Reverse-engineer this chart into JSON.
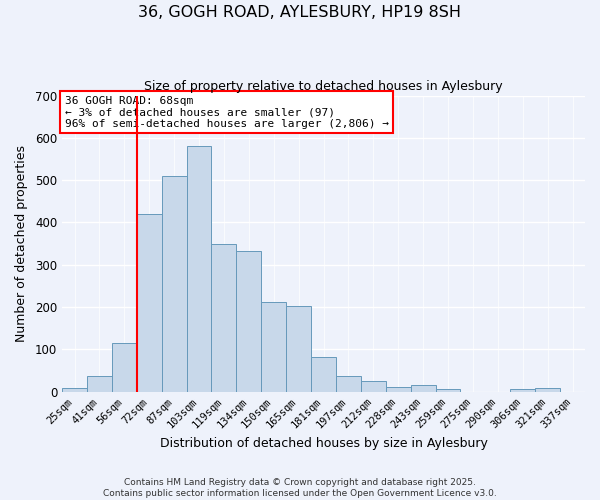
{
  "title": "36, GOGH ROAD, AYLESBURY, HP19 8SH",
  "subtitle": "Size of property relative to detached houses in Aylesbury",
  "xlabel": "Distribution of detached houses by size in Aylesbury",
  "ylabel": "Number of detached properties",
  "bar_color": "#c8d8ea",
  "bar_edge_color": "#6699bb",
  "background_color": "#eef2fb",
  "grid_color": "#ffffff",
  "bin_labels": [
    "25sqm",
    "41sqm",
    "56sqm",
    "72sqm",
    "87sqm",
    "103sqm",
    "119sqm",
    "134sqm",
    "150sqm",
    "165sqm",
    "181sqm",
    "197sqm",
    "212sqm",
    "228sqm",
    "243sqm",
    "259sqm",
    "275sqm",
    "290sqm",
    "306sqm",
    "321sqm",
    "337sqm"
  ],
  "bar_values": [
    8,
    37,
    115,
    420,
    510,
    580,
    348,
    332,
    213,
    202,
    83,
    37,
    24,
    12,
    15,
    5,
    0,
    0,
    7,
    8,
    0
  ],
  "vline_index": 3,
  "ylim": [
    0,
    700
  ],
  "yticks": [
    0,
    100,
    200,
    300,
    400,
    500,
    600,
    700
  ],
  "annotation_title": "36 GOGH ROAD: 68sqm",
  "annotation_line1": "← 3% of detached houses are smaller (97)",
  "annotation_line2": "96% of semi-detached houses are larger (2,806) →",
  "footer1": "Contains HM Land Registry data © Crown copyright and database right 2025.",
  "footer2": "Contains public sector information licensed under the Open Government Licence v3.0."
}
